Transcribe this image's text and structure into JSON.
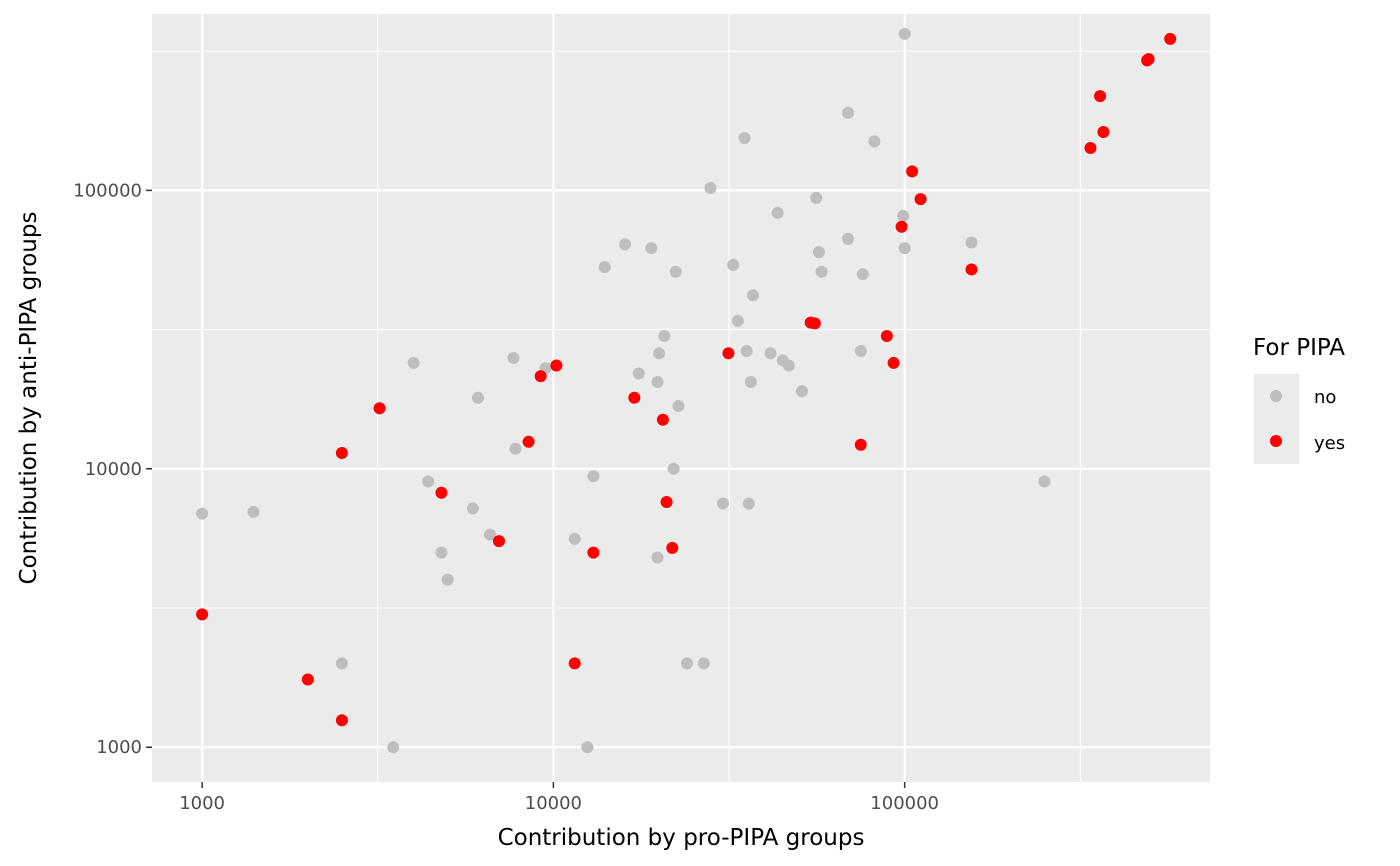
{
  "chart_data": {
    "type": "scatter",
    "title": "",
    "xlabel": "Contribution by pro-PIPA groups",
    "ylabel": "Contribution by anti-PIPA groups",
    "x_scale": "log10",
    "y_scale": "log10",
    "xlim": [
      720,
      740000
    ],
    "ylim": [
      750,
      430000
    ],
    "x_ticks": [
      1000,
      10000,
      100000
    ],
    "x_tick_labels": [
      "1000",
      "10000",
      "100000"
    ],
    "y_ticks": [
      1000,
      10000,
      100000
    ],
    "y_tick_labels": [
      "1000",
      "10000",
      "100000"
    ],
    "grid": true,
    "legend": {
      "title": "For PIPA",
      "placement": "right",
      "entries": [
        {
          "label": "no",
          "color": "#bebebe"
        },
        {
          "label": "yes",
          "color": "#ff0000"
        }
      ]
    },
    "colors": {
      "panel": "#ebebeb",
      "grid": "#ffffff",
      "no": "#bebebe",
      "yes": "#ff0000"
    },
    "series": [
      {
        "name": "no",
        "points": [
          [
            1000,
            6900
          ],
          [
            1000,
            3000
          ],
          [
            1400,
            7000
          ],
          [
            2500,
            2000
          ],
          [
            3500,
            1000
          ],
          [
            4000,
            24000
          ],
          [
            4400,
            9000
          ],
          [
            4800,
            5000
          ],
          [
            5000,
            4000
          ],
          [
            5900,
            7200
          ],
          [
            6100,
            18000
          ],
          [
            6600,
            5800
          ],
          [
            7700,
            25000
          ],
          [
            7800,
            11800
          ],
          [
            9500,
            23000
          ],
          [
            11500,
            5600
          ],
          [
            12500,
            1000
          ],
          [
            13000,
            9400
          ],
          [
            14000,
            53000
          ],
          [
            16000,
            64000
          ],
          [
            17500,
            22000
          ],
          [
            19000,
            62000
          ],
          [
            19800,
            20500
          ],
          [
            19800,
            4800
          ],
          [
            20000,
            26000
          ],
          [
            20700,
            30000
          ],
          [
            22000,
            10000
          ],
          [
            22300,
            51000
          ],
          [
            22700,
            16800
          ],
          [
            24000,
            2000
          ],
          [
            26800,
            2000
          ],
          [
            28000,
            102000
          ],
          [
            30400,
            7500
          ],
          [
            32500,
            54000
          ],
          [
            33500,
            34000
          ],
          [
            35000,
            154000
          ],
          [
            35500,
            26500
          ],
          [
            36000,
            7500
          ],
          [
            36500,
            20500
          ],
          [
            37000,
            42000
          ],
          [
            41500,
            26000
          ],
          [
            43500,
            83000
          ],
          [
            45000,
            24500
          ],
          [
            46800,
            23500
          ],
          [
            51000,
            19000
          ],
          [
            56000,
            94000
          ],
          [
            57000,
            60000
          ],
          [
            58000,
            51000
          ],
          [
            69000,
            67000
          ],
          [
            69000,
            190000
          ],
          [
            75000,
            26500
          ],
          [
            76000,
            50000
          ],
          [
            82000,
            150000
          ],
          [
            99000,
            81000
          ],
          [
            100000,
            62000
          ],
          [
            100000,
            365000
          ],
          [
            155000,
            65000
          ],
          [
            250000,
            9000
          ]
        ]
      },
      {
        "name": "yes",
        "points": [
          [
            1000,
            3000
          ],
          [
            2000,
            1750
          ],
          [
            2500,
            11400
          ],
          [
            2500,
            1250
          ],
          [
            3200,
            16500
          ],
          [
            4800,
            8200
          ],
          [
            7000,
            5500
          ],
          [
            8500,
            12500
          ],
          [
            9200,
            21500
          ],
          [
            10200,
            23500
          ],
          [
            11500,
            2000
          ],
          [
            13000,
            5000
          ],
          [
            17000,
            18000
          ],
          [
            20500,
            15000
          ],
          [
            21000,
            7600
          ],
          [
            21800,
            5200
          ],
          [
            31500,
            26000
          ],
          [
            54000,
            33500
          ],
          [
            55500,
            33300
          ],
          [
            75000,
            12200
          ],
          [
            89000,
            30000
          ],
          [
            93000,
            24000
          ],
          [
            98000,
            74000
          ],
          [
            105000,
            117000
          ],
          [
            111000,
            93000
          ],
          [
            155000,
            52000
          ],
          [
            338000,
            142000
          ],
          [
            360000,
            218000
          ],
          [
            368000,
            162000
          ],
          [
            490000,
            293000
          ],
          [
            495000,
            296000
          ],
          [
            570000,
            350000
          ]
        ]
      }
    ]
  }
}
